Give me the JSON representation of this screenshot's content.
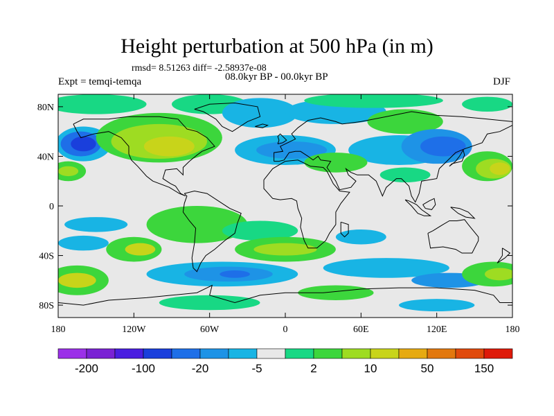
{
  "title": "Height perturbation at 500 hPa (in m)",
  "stats_text": "rmsd= 8.51263 diff= -2.58937e-08",
  "experiment_text": "Expt = temqi-temqa",
  "period_text": "08.0kyr BP - 00.0kyr BP",
  "season_text": "DJF",
  "axes": {
    "lat_ticks": [
      "80N",
      "40N",
      "0",
      "40S",
      "80S"
    ],
    "lat_values": [
      80,
      40,
      0,
      -40,
      -80
    ],
    "lon_ticks": [
      "180",
      "120W",
      "60W",
      "0",
      "60E",
      "120E",
      "180"
    ],
    "lon_values": [
      -180,
      -120,
      -60,
      0,
      60,
      120,
      180
    ],
    "lon_range": [
      -180,
      180
    ],
    "lat_range": [
      -90,
      90
    ]
  },
  "colorbar": {
    "colors": [
      "#9b30e8",
      "#7a22d4",
      "#4a1ee0",
      "#1a3fdc",
      "#1e6fe8",
      "#1e93e6",
      "#18b4e4",
      "#e8e8e8",
      "#18d884",
      "#3cd63c",
      "#9edc22",
      "#c8d41a",
      "#e6aa12",
      "#e2780e",
      "#e04a0c",
      "#de1a0a"
    ],
    "labels": [
      "-200",
      "-100",
      "-20",
      "-5",
      "2",
      "10",
      "50",
      "150"
    ]
  },
  "field": {
    "background": "#e8e8e8",
    "blobs": [
      {
        "lon": -160,
        "lat": 50,
        "rx": 22,
        "ry": 14,
        "color": "#18b4e4"
      },
      {
        "lon": -162,
        "lat": 50,
        "rx": 16,
        "ry": 10,
        "color": "#1e6fe8"
      },
      {
        "lon": -160,
        "lat": 50,
        "rx": 10,
        "ry": 6,
        "color": "#1a3fdc"
      },
      {
        "lon": -150,
        "lat": 82,
        "rx": 40,
        "ry": 8,
        "color": "#18d884"
      },
      {
        "lon": -100,
        "lat": 55,
        "rx": 50,
        "ry": 20,
        "color": "#3cd63c"
      },
      {
        "lon": -100,
        "lat": 52,
        "rx": 38,
        "ry": 14,
        "color": "#9edc22"
      },
      {
        "lon": -92,
        "lat": 48,
        "rx": 20,
        "ry": 8,
        "color": "#c8d41a"
      },
      {
        "lon": -172,
        "lat": 28,
        "rx": 14,
        "ry": 8,
        "color": "#3cd63c"
      },
      {
        "lon": -172,
        "lat": 28,
        "rx": 8,
        "ry": 4,
        "color": "#9edc22"
      },
      {
        "lon": -60,
        "lat": 82,
        "rx": 30,
        "ry": 8,
        "color": "#18d884"
      },
      {
        "lon": -20,
        "lat": 75,
        "rx": 30,
        "ry": 12,
        "color": "#18b4e4"
      },
      {
        "lon": 40,
        "lat": 76,
        "rx": 40,
        "ry": 10,
        "color": "#18b4e4"
      },
      {
        "lon": 70,
        "lat": 85,
        "rx": 55,
        "ry": 6,
        "color": "#18d884"
      },
      {
        "lon": 95,
        "lat": 68,
        "rx": 30,
        "ry": 10,
        "color": "#3cd63c"
      },
      {
        "lon": 0,
        "lat": 45,
        "rx": 40,
        "ry": 12,
        "color": "#18b4e4"
      },
      {
        "lon": 5,
        "lat": 45,
        "rx": 28,
        "ry": 7,
        "color": "#1e93e6"
      },
      {
        "lon": 90,
        "lat": 45,
        "rx": 40,
        "ry": 12,
        "color": "#18b4e4"
      },
      {
        "lon": 120,
        "lat": 48,
        "rx": 28,
        "ry": 14,
        "color": "#1e93e6"
      },
      {
        "lon": 125,
        "lat": 48,
        "rx": 18,
        "ry": 8,
        "color": "#1e6fe8"
      },
      {
        "lon": 40,
        "lat": 35,
        "rx": 25,
        "ry": 8,
        "color": "#3cd63c"
      },
      {
        "lon": 95,
        "lat": 25,
        "rx": 20,
        "ry": 6,
        "color": "#18d884"
      },
      {
        "lon": 160,
        "lat": 32,
        "rx": 20,
        "ry": 12,
        "color": "#3cd63c"
      },
      {
        "lon": 165,
        "lat": 30,
        "rx": 14,
        "ry": 8,
        "color": "#9edc22"
      },
      {
        "lon": 170,
        "lat": 30,
        "rx": 8,
        "ry": 5,
        "color": "#c8d41a"
      },
      {
        "lon": 160,
        "lat": 82,
        "rx": 20,
        "ry": 6,
        "color": "#18d884"
      },
      {
        "lon": -150,
        "lat": -15,
        "rx": 25,
        "ry": 6,
        "color": "#18b4e4"
      },
      {
        "lon": -70,
        "lat": -15,
        "rx": 40,
        "ry": 15,
        "color": "#3cd63c"
      },
      {
        "lon": -20,
        "lat": -20,
        "rx": 30,
        "ry": 8,
        "color": "#18d884"
      },
      {
        "lon": 0,
        "lat": -35,
        "rx": 40,
        "ry": 10,
        "color": "#3cd63c"
      },
      {
        "lon": 0,
        "lat": -35,
        "rx": 25,
        "ry": 5,
        "color": "#9edc22"
      },
      {
        "lon": 60,
        "lat": -25,
        "rx": 20,
        "ry": 6,
        "color": "#18b4e4"
      },
      {
        "lon": -160,
        "lat": -30,
        "rx": 20,
        "ry": 6,
        "color": "#18b4e4"
      },
      {
        "lon": -120,
        "lat": -35,
        "rx": 22,
        "ry": 10,
        "color": "#3cd63c"
      },
      {
        "lon": -115,
        "lat": -35,
        "rx": 12,
        "ry": 5,
        "color": "#c8d41a"
      },
      {
        "lon": -50,
        "lat": -55,
        "rx": 60,
        "ry": 10,
        "color": "#18b4e4"
      },
      {
        "lon": -45,
        "lat": -55,
        "rx": 35,
        "ry": 6,
        "color": "#1e93e6"
      },
      {
        "lon": -40,
        "lat": -55,
        "rx": 12,
        "ry": 3,
        "color": "#1e6fe8"
      },
      {
        "lon": 80,
        "lat": -50,
        "rx": 50,
        "ry": 8,
        "color": "#18b4e4"
      },
      {
        "lon": 130,
        "lat": -60,
        "rx": 30,
        "ry": 6,
        "color": "#1e93e6"
      },
      {
        "lon": -165,
        "lat": -60,
        "rx": 25,
        "ry": 12,
        "color": "#3cd63c"
      },
      {
        "lon": -165,
        "lat": -60,
        "rx": 15,
        "ry": 6,
        "color": "#c8d41a"
      },
      {
        "lon": 165,
        "lat": -55,
        "rx": 25,
        "ry": 10,
        "color": "#3cd63c"
      },
      {
        "lon": 170,
        "lat": -55,
        "rx": 12,
        "ry": 5,
        "color": "#9edc22"
      },
      {
        "lon": 40,
        "lat": -70,
        "rx": 30,
        "ry": 6,
        "color": "#3cd63c"
      },
      {
        "lon": -60,
        "lat": -78,
        "rx": 40,
        "ry": 6,
        "color": "#18d884"
      },
      {
        "lon": 120,
        "lat": -80,
        "rx": 30,
        "ry": 5,
        "color": "#18b4e4"
      }
    ]
  }
}
